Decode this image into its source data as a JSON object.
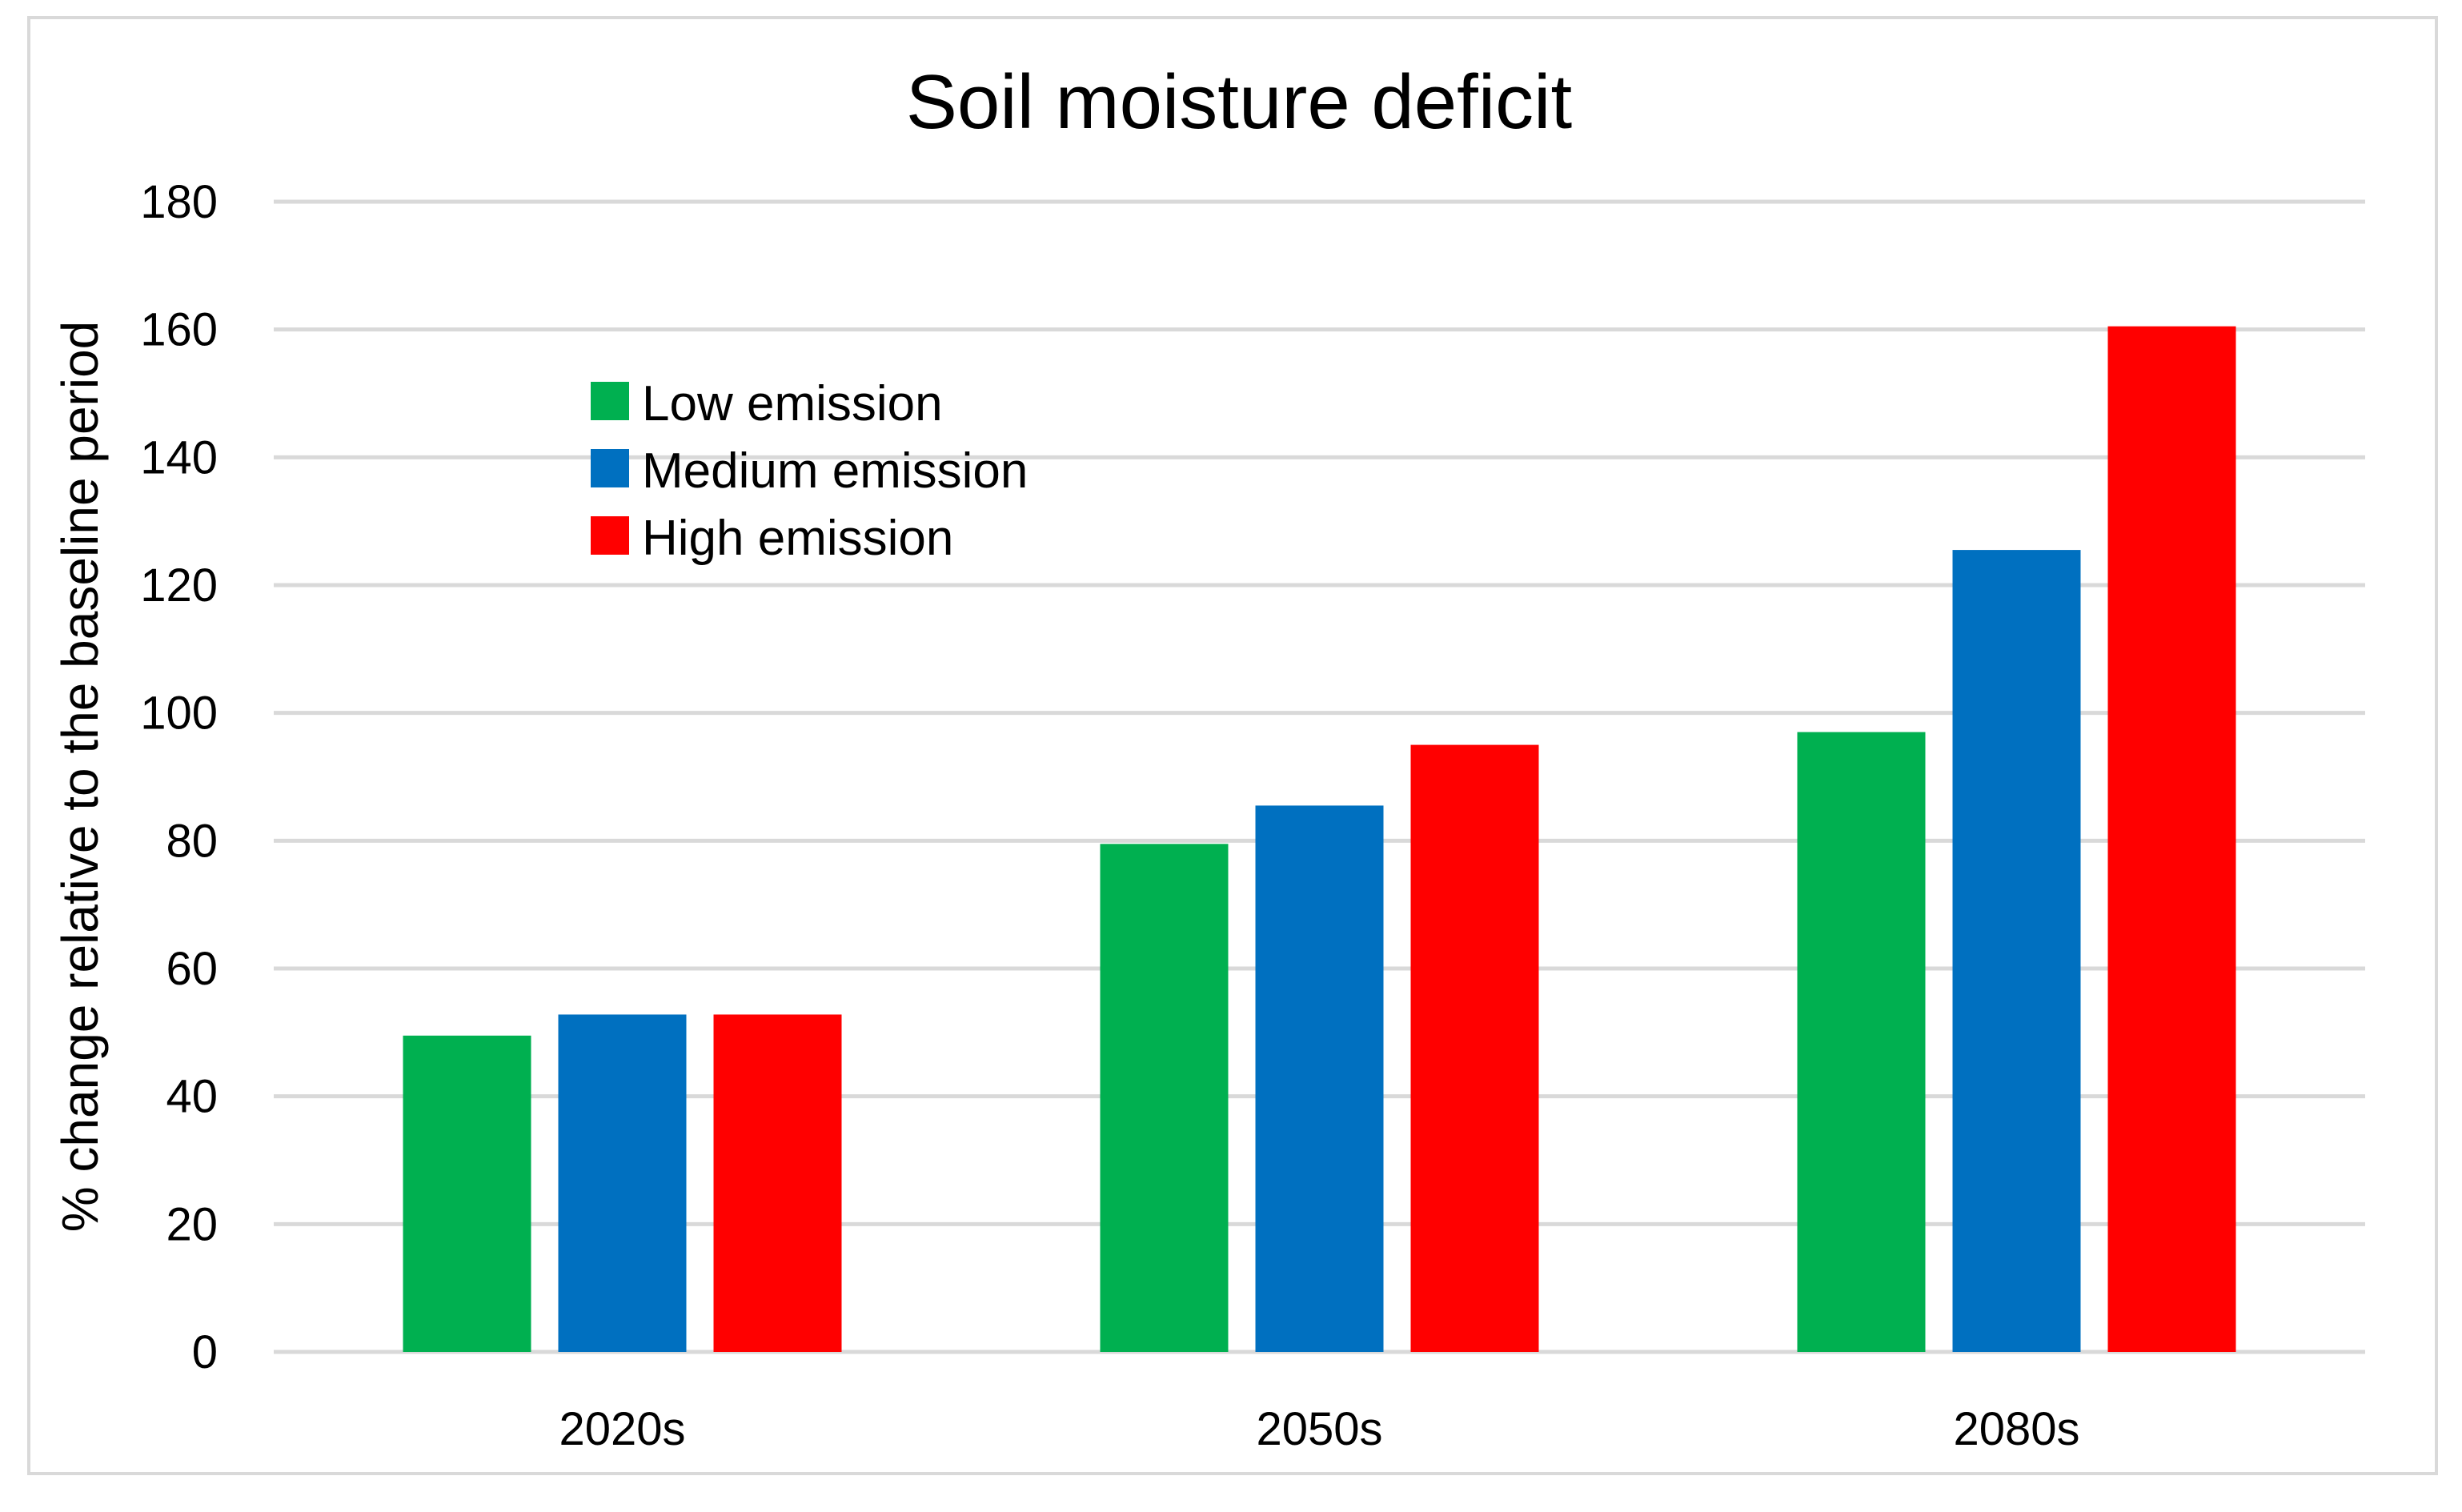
{
  "chart_data": {
    "type": "bar",
    "title": "Soil moisture deficit",
    "xlabel": "",
    "ylabel": "% change relative to the baseline period",
    "categories": [
      "2020s",
      "2050s",
      "2080s"
    ],
    "ylim": [
      0,
      180
    ],
    "yticks": [
      0,
      20,
      40,
      60,
      80,
      100,
      120,
      140,
      160,
      180
    ],
    "grid": true,
    "legend_position": "top-left",
    "series": [
      {
        "name": "Low emission",
        "color": "#00b050",
        "values": [
          49.5,
          79.5,
          97
        ]
      },
      {
        "name": "Medium emission",
        "color": "#0070c0",
        "values": [
          52.8,
          85.5,
          125.5
        ]
      },
      {
        "name": "High emission",
        "color": "#ff0000",
        "values": [
          52.8,
          95,
          160.5
        ]
      }
    ]
  }
}
